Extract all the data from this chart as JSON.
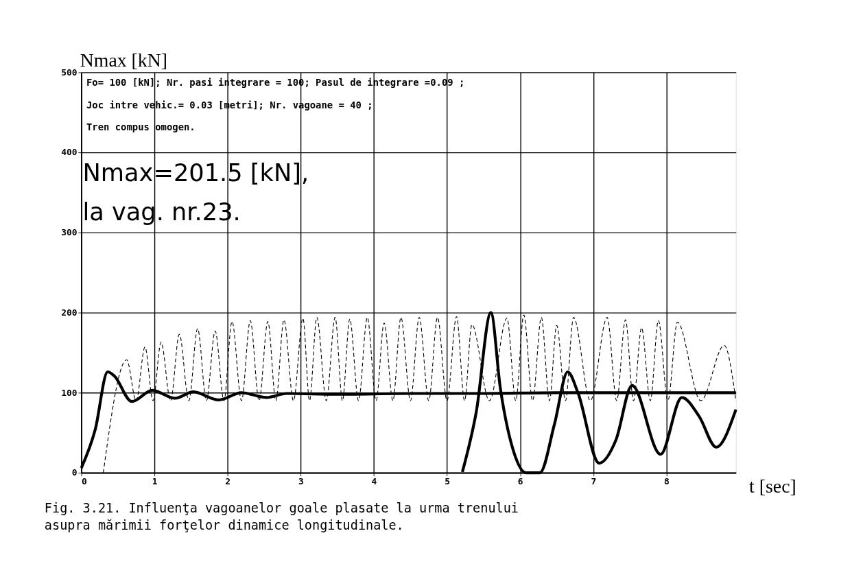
{
  "chart_data": {
    "type": "line",
    "xlabel": "t [sec]",
    "ylabel": "Nmax [kN]",
    "xlim": [
      0,
      8.95
    ],
    "xticks": [
      0,
      1,
      2,
      3,
      4,
      5,
      6,
      7,
      8
    ],
    "ylim": [
      0,
      500
    ],
    "yticks": [
      0,
      100,
      200,
      300,
      400,
      500
    ],
    "grid": true,
    "annotations": [
      "Fo= 100 [kN]; Nr. pasi integrare = 100; Pasul de integrare =0.09 ;",
      "Joc intre vehic.= 0.03 [metri]; Nr. vagoane = 40 ;",
      "Tren compus omogen.",
      "Nmax=201.5 [kN],",
      "la vag. nr.23.",
      "Fig. 3.21. Influenţa vagoanelor goale plasate la urma trenului",
      "asupra mărimii forţelor dinamice longitudinale."
    ],
    "series": [
      {
        "color": "#000000",
        "line_style": "dashed",
        "x": [
          0.3,
          0.62,
          0.75,
          0.87,
          0.98,
          1.09,
          1.22,
          1.34,
          1.47,
          1.59,
          1.71,
          1.83,
          1.95,
          2.06,
          2.19,
          2.31,
          2.43,
          2.55,
          2.66,
          2.77,
          2.9,
          3.03,
          3.12,
          3.22,
          3.35,
          3.47,
          3.57,
          3.67,
          3.79,
          3.91,
          4.03,
          4.14,
          4.26,
          4.37,
          4.5,
          4.62,
          4.75,
          4.87,
          5.0,
          5.13,
          5.24,
          5.34,
          5.58,
          5.82,
          5.94,
          6.05,
          6.17,
          6.29,
          6.4,
          6.5,
          6.62,
          6.73,
          6.96,
          7.19,
          7.32,
          7.44,
          7.55,
          7.66,
          7.78,
          7.89,
          8.02,
          8.15,
          8.47,
          8.79,
          8.95
        ],
        "values": [
          0,
          141,
          90,
          157,
          90,
          163,
          90,
          173,
          90,
          180,
          90,
          177,
          90,
          189,
          90,
          190,
          90,
          189,
          90,
          191,
          90,
          193,
          90,
          194,
          90,
          194,
          90,
          192,
          90,
          194,
          90,
          187,
          90,
          194,
          90,
          194,
          90,
          194,
          90,
          195,
          90,
          185,
          90,
          193,
          90,
          197,
          90,
          194,
          90,
          184,
          90,
          194,
          90,
          194,
          90,
          191,
          90,
          181,
          90,
          190,
          90,
          188,
          90,
          159,
          90
        ]
      },
      {
        "color": "#000000",
        "line_style": "solid",
        "x": [
          0,
          0.19,
          0.36,
          0.45,
          0.69,
          0.97,
          1.28,
          1.53,
          1.88,
          2.19,
          2.53,
          2.81,
          3.5,
          4.5,
          5.5,
          6.5,
          7.5,
          8.95
        ],
        "values": [
          6,
          54,
          126,
          121,
          89,
          103,
          93,
          101,
          91,
          100,
          94,
          99,
          98,
          99,
          99,
          100,
          100,
          100
        ]
      },
      {
        "color": "#000000",
        "line_style": "solid",
        "x": [
          5.21,
          5.4,
          5.6,
          5.73,
          5.92,
          6.08,
          6.27,
          6.47,
          6.65,
          6.79,
          7.08,
          7.31,
          7.53,
          7.92,
          8.21,
          8.45,
          8.68,
          8.95
        ],
        "values": [
          1,
          76,
          200,
          105,
          24,
          0,
          0,
          61,
          126,
          100,
          12,
          41,
          109,
          23,
          94,
          70,
          32,
          79
        ]
      }
    ]
  }
}
